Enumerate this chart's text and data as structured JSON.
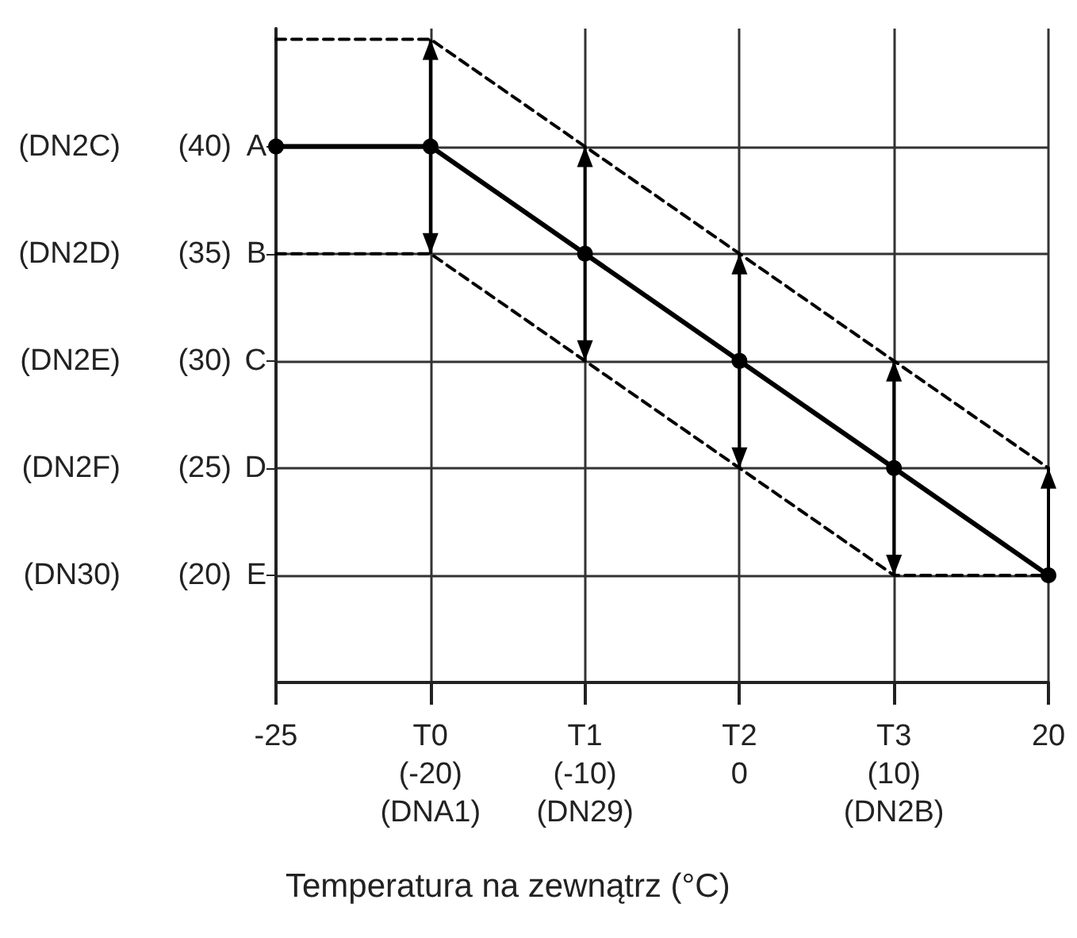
{
  "chart_data": {
    "type": "line",
    "xlabel": "Temperatura na zewnątrz (°C)",
    "categories": [
      "-25",
      "T0\n(-20)\n(DNA1)",
      "T1\n(-10)\n(DN29)",
      "T2\n0",
      "T3\n(10)\n(DN2B)",
      "20"
    ],
    "series": [
      {
        "color": "#000000",
        "values": [
          40,
          40,
          35,
          30,
          25,
          20
        ],
        "line_style": "solid",
        "marker": "circle",
        "errors": [
          null,
          5,
          5,
          5,
          5,
          [
            20,
            25
          ]
        ]
      },
      {
        "color": "#000000",
        "values": [
          45,
          45,
          40,
          35,
          30,
          25
        ],
        "line_style": "dashed",
        "marker": "none"
      },
      {
        "color": "#000000",
        "values": [
          35,
          35,
          30,
          25,
          20,
          20
        ],
        "line_style": "dashed",
        "marker": "none"
      }
    ],
    "ylim": [
      15,
      45.5
    ],
    "yticks": [
      {
        "value": 20,
        "label": "(20)"
      },
      {
        "value": 25,
        "label": "(25)"
      },
      {
        "value": 30,
        "label": "(30)"
      },
      {
        "value": 35,
        "label": "(35)"
      },
      {
        "value": 40,
        "label": "(40)"
      }
    ],
    "annotations": [
      "(DN2C)",
      "A",
      "(DN2D)",
      "B",
      "(DN2E)",
      "C",
      "(DN2F)",
      "D",
      "(DN30)",
      "E"
    ],
    "grid": true
  }
}
